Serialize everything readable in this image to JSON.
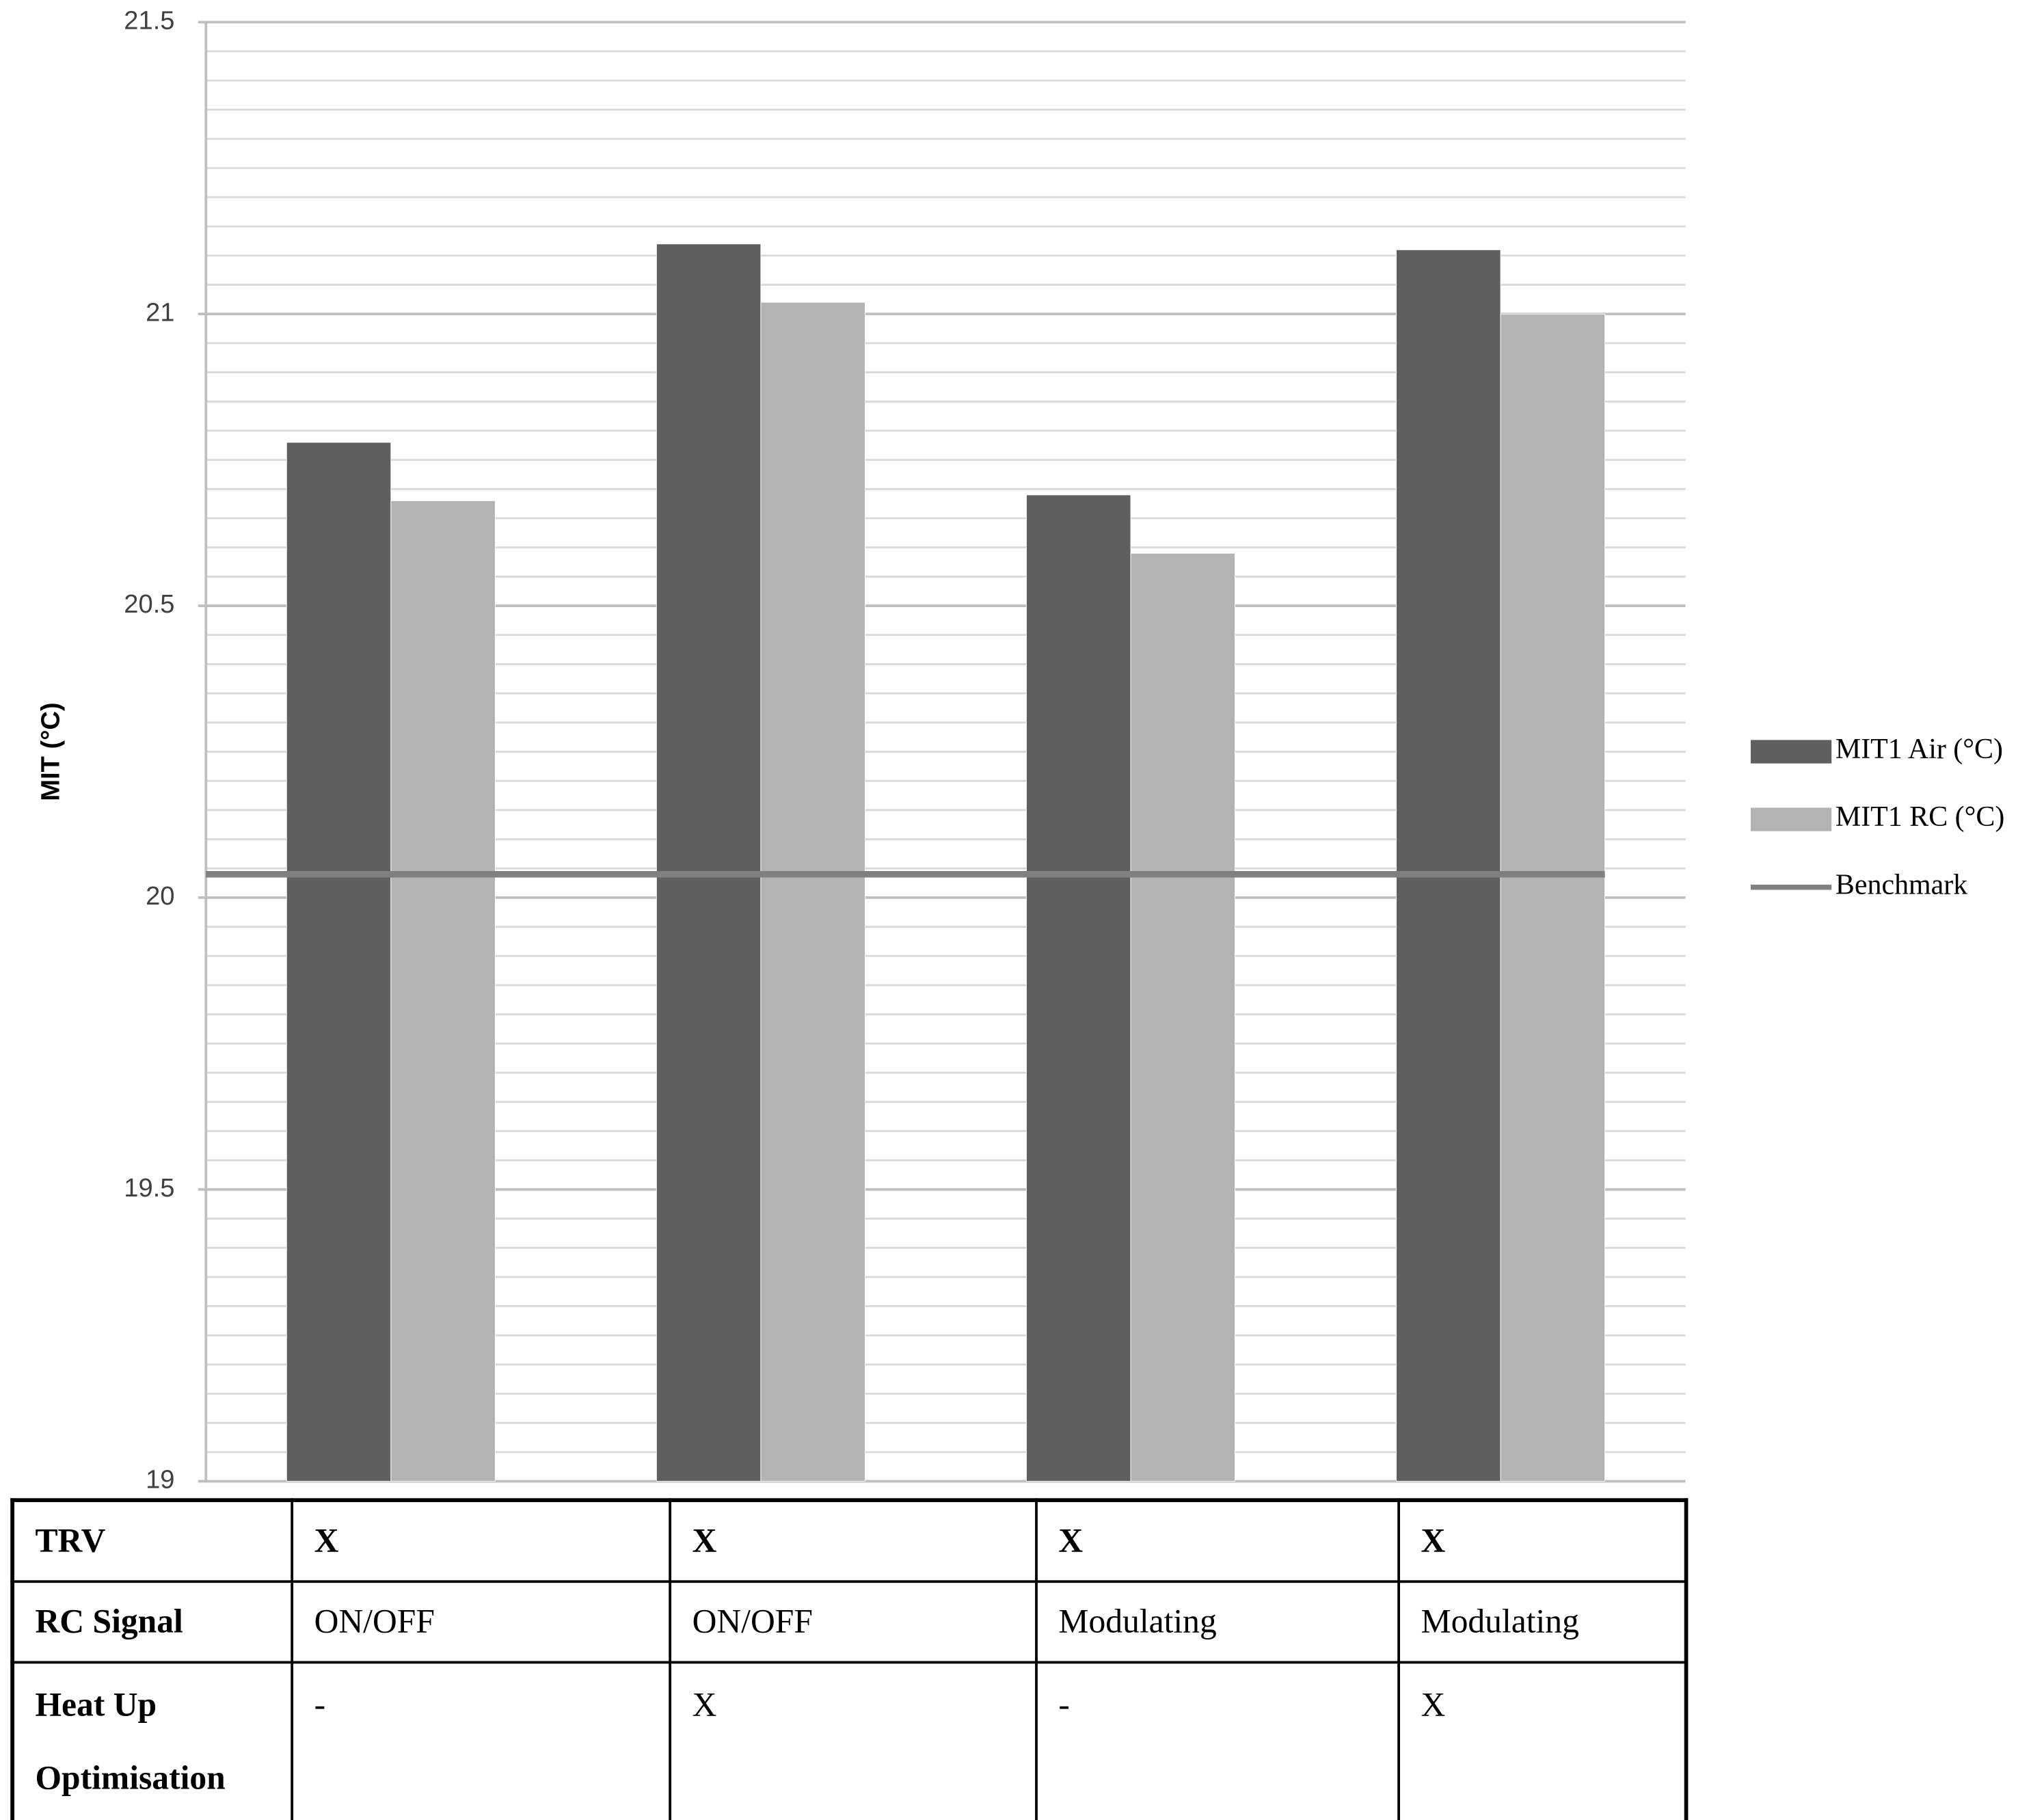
{
  "chart_data": {
    "type": "bar",
    "y_label": "MIT (°C)",
    "categories": [
      null,
      null,
      null,
      null
    ],
    "ylim": [
      19,
      21.5
    ],
    "yticks": [
      19,
      19.5,
      20,
      20.5,
      21,
      21.5
    ],
    "grid": true,
    "minor_grid": true,
    "legend": "right",
    "series": [
      {
        "name": "MIT1 Air (°C)",
        "color": "#5f5f5f",
        "type": "bar",
        "values": [
          20.78,
          21.12,
          20.69,
          21.11
        ]
      },
      {
        "name": "MIT1 RC (°C)",
        "color": "#b3b3b3",
        "type": "bar",
        "values": [
          20.68,
          21.02,
          20.59,
          21.0
        ]
      },
      {
        "name": "Benchmark",
        "color": "#808080",
        "type": "line",
        "values": [
          20.04,
          20.04,
          20.04,
          20.04
        ]
      }
    ]
  },
  "table": {
    "rows": [
      [
        "TRV",
        "X",
        "X",
        "X",
        "X"
      ],
      [
        "RC Signal",
        "ON/OFF",
        "ON/OFF",
        "Modulating",
        "Modulating"
      ],
      [
        "Heat Up Optimisation",
        "-",
        "X",
        "-",
        "X"
      ]
    ]
  }
}
